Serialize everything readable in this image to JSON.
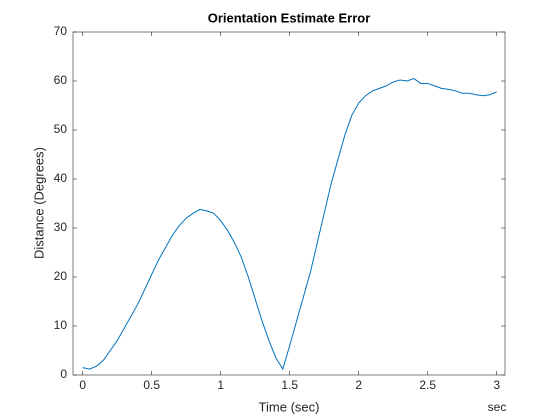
{
  "chart_data": {
    "type": "line",
    "title": "Orientation Estimate Error",
    "x_label": "Time (sec)",
    "y_label": "Distance (Degrees)",
    "x_unit": "sec",
    "x": [
      0,
      0.05,
      0.1,
      0.15,
      0.2,
      0.25,
      0.3,
      0.35,
      0.4,
      0.45,
      0.5,
      0.55,
      0.6,
      0.65,
      0.7,
      0.75,
      0.8,
      0.85,
      0.9,
      0.95,
      1,
      1.05,
      1.1,
      1.15,
      1.2,
      1.25,
      1.3,
      1.35,
      1.4,
      1.45,
      1.5,
      1.55,
      1.6,
      1.65,
      1.7,
      1.75,
      1.8,
      1.85,
      1.9,
      1.95,
      2,
      2.05,
      2.1,
      2.15,
      2.2,
      2.25,
      2.3,
      2.35,
      2.4,
      2.45,
      2.5,
      2.55,
      2.6,
      2.65,
      2.7,
      2.75,
      2.8,
      2.85,
      2.9,
      2.95,
      3
    ],
    "series": [
      {
        "color": "#0072bd",
        "values": [
          1.5,
          1.2,
          1.8,
          3,
          5,
          7,
          9.5,
          12,
          14.5,
          17.5,
          20.5,
          23.5,
          26,
          28.5,
          30.5,
          32,
          33,
          33.8,
          33.5,
          33,
          31.5,
          29.5,
          27,
          24,
          20,
          15.5,
          11,
          7,
          3.5,
          1.2,
          6,
          11,
          16,
          21,
          27,
          33,
          39,
          44,
          49,
          53,
          55.5,
          57,
          58,
          58.5,
          59,
          59.8,
          60.2,
          60,
          60.5,
          59.5,
          59.5,
          59,
          58.5,
          58.3,
          58,
          57.5,
          57.5,
          57.2,
          57,
          57.2,
          57.8
        ]
      }
    ],
    "xlim": [
      -0.07,
      3.06
    ],
    "ylim": [
      0,
      70
    ],
    "xticks": [
      0,
      0.5,
      1,
      1.5,
      2,
      2.5,
      3
    ],
    "yticks": [
      0,
      10,
      20,
      30,
      40,
      50,
      60,
      70
    ]
  }
}
